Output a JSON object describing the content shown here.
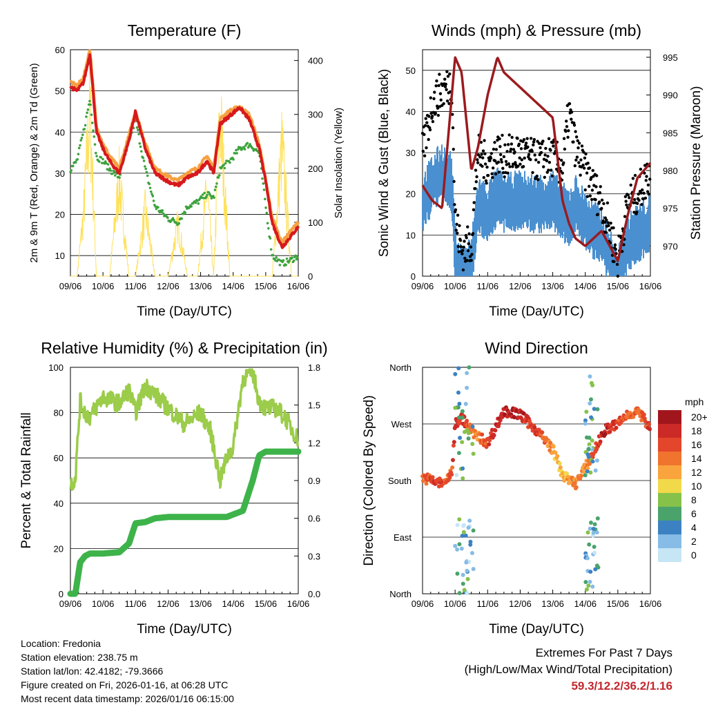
{
  "colors": {
    "temp": "#d7191c",
    "temp9m": "#f5a142",
    "dewpoint": "#3da33d",
    "solar": "#ffe15a",
    "wind": "#4a90d0",
    "gust": "#000000",
    "pressure": "#9b1b1f",
    "rh": "#9bcc4a",
    "precip": "#3db34a",
    "extremes": "#c1272d"
  },
  "x_ticks": [
    "09/06",
    "10/06",
    "11/06",
    "12/06",
    "13/06",
    "14/06",
    "15/06",
    "16/06"
  ],
  "x_label": "Time (Day/UTC)",
  "chart_data": [
    {
      "type": "line",
      "title": "Temperature (F)",
      "ylabel": "2m & 9m T (Red, Orange) & 2m Td (Green)",
      "y2label": "Solar Insolation (Yellow)",
      "ylim": [
        5,
        60
      ],
      "y2lim": [
        0,
        420
      ],
      "yticks": [
        10,
        20,
        30,
        40,
        50,
        60
      ],
      "y2ticks": [
        0,
        100,
        200,
        300,
        400
      ],
      "x": [
        0,
        0.2,
        0.4,
        0.6,
        0.8,
        1.0,
        1.2,
        1.5,
        1.8,
        2.0,
        2.3,
        2.6,
        3.0,
        3.3,
        3.6,
        3.9,
        4.2,
        4.4,
        4.6,
        4.9,
        5.2,
        5.5,
        5.8,
        6.0,
        6.2,
        6.5,
        6.8,
        7.0
      ],
      "series": [
        {
          "name": "2m T",
          "values": [
            51,
            50,
            52,
            59,
            40,
            36,
            33,
            30,
            38,
            45,
            36,
            30,
            28,
            27,
            29,
            30,
            33,
            30,
            42,
            44,
            46,
            43,
            36,
            28,
            18,
            12,
            15,
            17
          ]
        },
        {
          "name": "9m T",
          "values": [
            52,
            51,
            53,
            60,
            41,
            37,
            34,
            31,
            39,
            45,
            37,
            31,
            29,
            28,
            30,
            31,
            34,
            31,
            43,
            45,
            46,
            44,
            37,
            28,
            19,
            13,
            16,
            18
          ]
        },
        {
          "name": "2m Td",
          "values": [
            31,
            33,
            40,
            48,
            34,
            33,
            31,
            29,
            38,
            43,
            31,
            22,
            19,
            18,
            22,
            23,
            25,
            24,
            31,
            33,
            36,
            37,
            35,
            22,
            10,
            8,
            9,
            10
          ]
        },
        {
          "name": "Solar",
          "values": [
            0,
            0,
            140,
            380,
            0,
            0,
            0,
            220,
            0,
            0,
            150,
            0,
            0,
            120,
            0,
            0,
            200,
            0,
            370,
            0,
            0,
            0,
            0,
            0,
            0,
            300,
            0,
            0
          ]
        }
      ]
    },
    {
      "type": "scatter",
      "title": "Winds (mph) & Pressure (mb)",
      "ylabel": "Sonic Wind & Gust (Blue, Black)",
      "y2label": "Station Pressure (Maroon)",
      "ylim": [
        0,
        55
      ],
      "y2lim": [
        966,
        996
      ],
      "yticks": [
        0,
        10,
        20,
        30,
        40,
        50
      ],
      "y2ticks": [
        970,
        975,
        980,
        985,
        990,
        995
      ],
      "x": [
        0,
        0.3,
        0.6,
        0.9,
        1.0,
        1.2,
        1.5,
        1.7,
        2.0,
        2.3,
        2.5,
        3.0,
        3.5,
        4.0,
        4.3,
        4.5,
        4.7,
        5.0,
        5.5,
        6.0,
        6.3,
        6.6,
        7.0
      ],
      "series": [
        {
          "name": "Sonic Wind",
          "values": [
            20,
            25,
            28,
            25,
            8,
            3,
            5,
            20,
            18,
            22,
            20,
            21,
            20,
            21,
            18,
            17,
            20,
            16,
            12,
            2,
            10,
            13,
            15
          ]
        },
        {
          "name": "Gust",
          "values": [
            30,
            42,
            45,
            47,
            14,
            6,
            8,
            30,
            27,
            30,
            29,
            30,
            28,
            29,
            26,
            40,
            31,
            25,
            18,
            4,
            18,
            20,
            25
          ]
        },
        {
          "name": "Station Pressure",
          "values": [
            978,
            976,
            975,
            990,
            995,
            993,
            980,
            983,
            990,
            995,
            993,
            991,
            989,
            987,
            976,
            973,
            971,
            970,
            972,
            968,
            974,
            979,
            981
          ]
        }
      ]
    },
    {
      "type": "line",
      "title": "Relative Humidity (%) & Precipitation (in)",
      "ylabel": "Percent & Total Rainfall",
      "ylim": [
        0,
        100
      ],
      "y2lim": [
        0,
        1.8
      ],
      "yticks": [
        0,
        20,
        40,
        60,
        80,
        100
      ],
      "y2ticks": [
        "0.0",
        "0.3",
        "0.6",
        "0.9",
        "1.2",
        "1.5",
        "1.8"
      ],
      "x": [
        0,
        0.15,
        0.3,
        0.45,
        0.6,
        1.0,
        1.5,
        1.8,
        2.0,
        2.3,
        2.6,
        3.0,
        3.5,
        4.0,
        4.3,
        4.6,
        4.8,
        5.0,
        5.3,
        5.6,
        5.8,
        6.0,
        6.3,
        6.6,
        7.0
      ],
      "series": [
        {
          "name": "RH",
          "values": [
            48,
            51,
            85,
            80,
            78,
            87,
            84,
            90,
            80,
            92,
            88,
            82,
            75,
            80,
            72,
            50,
            60,
            65,
            95,
            98,
            85,
            82,
            82,
            78,
            68
          ]
        },
        {
          "name": "Precipitation",
          "values": [
            0,
            0,
            0.25,
            0.3,
            0.32,
            0.32,
            0.33,
            0.4,
            0.56,
            0.57,
            0.6,
            0.61,
            0.61,
            0.61,
            0.61,
            0.61,
            0.61,
            0.63,
            0.66,
            0.9,
            1.1,
            1.13,
            1.13,
            1.13,
            1.13
          ]
        }
      ]
    },
    {
      "type": "scatter",
      "title": "Wind Direction",
      "ylabel": "Direction (Colored By Speed)",
      "yticks": [
        "North",
        "East",
        "South",
        "West",
        "North"
      ],
      "ylim": [
        0,
        360
      ],
      "colorbar": {
        "title": "mph",
        "labels": [
          "20+",
          "18",
          "16",
          "14",
          "12",
          "10",
          "8",
          "6",
          "4",
          "2",
          "0"
        ],
        "colors": [
          "#a1161d",
          "#cc2a26",
          "#e3462b",
          "#f0732e",
          "#f9a43d",
          "#f2d94a",
          "#86c24a",
          "#4aa36b",
          "#3c82c2",
          "#86bce6",
          "#c6e6f6"
        ]
      },
      "x": [
        0,
        0.3,
        0.6,
        0.9,
        1.0,
        1.2,
        1.5,
        1.7,
        2.0,
        2.3,
        2.5,
        3.0,
        3.5,
        4.0,
        4.3,
        4.5,
        4.7,
        5.0,
        5.3,
        5.6,
        6.0,
        6.3,
        6.6,
        7.0
      ],
      "series": [
        {
          "name": "Direction",
          "values": [
            185,
            180,
            175,
            190,
            270,
            280,
            260,
            250,
            240,
            270,
            290,
            285,
            260,
            230,
            190,
            180,
            175,
            200,
            230,
            260,
            270,
            285,
            290,
            265
          ]
        },
        {
          "name": "Speed",
          "values": [
            16,
            18,
            18,
            17,
            18,
            18,
            16,
            14,
            18,
            20,
            20,
            20,
            18,
            14,
            12,
            14,
            16,
            14,
            18,
            20,
            18,
            16,
            16,
            18
          ]
        }
      ]
    }
  ],
  "info": {
    "location": "Location: Fredonia",
    "elevation": "Station elevation: 238.75 m",
    "latlon": "Station lat/lon: 42.4182; -79.3666",
    "created": "Figure created on Fri, 2026-01-16, at 06:28 UTC",
    "recent": "Most recent data timestamp: 2026/01/16 06:15:00"
  },
  "extremes": {
    "title": "Extremes For Past 7 Days",
    "subtitle": "(High/Low/Max Wind/Total Precipitation)",
    "values": "59.3/12.2/36.2/1.16"
  }
}
